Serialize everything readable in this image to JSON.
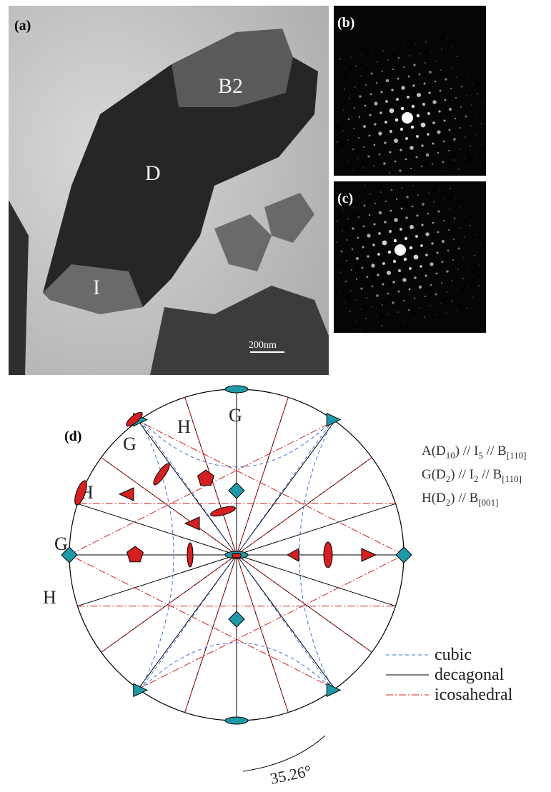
{
  "panels": {
    "a": {
      "label": "(a)",
      "regions": [
        "B2",
        "D",
        "I"
      ],
      "scale_bar": "200nm"
    },
    "b": {
      "label": "(b)"
    },
    "c": {
      "label": "(c)"
    },
    "d": {
      "label": "(d)",
      "pole_labels": [
        "G",
        "H",
        "G",
        "H",
        "G",
        "H"
      ],
      "relations": [
        [
          "A(D",
          "10",
          ") // I",
          "5",
          " // B",
          "[110]"
        ],
        [
          "G(D",
          "2",
          ") // I",
          "2",
          " // B",
          "[110]"
        ],
        [
          "H(D",
          "2",
          ") // B",
          "[001]"
        ]
      ],
      "legend": [
        "cubic",
        "decagonal",
        "icosahedral"
      ],
      "angle": "35.26°"
    }
  }
}
